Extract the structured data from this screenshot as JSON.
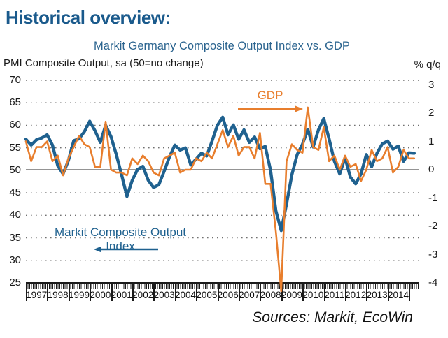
{
  "page": {
    "heading": "Historical overview:",
    "sources": "Sources: Markit, EcoWin"
  },
  "colors": {
    "heading": "#1A5A8C",
    "chart_title": "#2B648F",
    "pmi_line": "#1F618F",
    "gdp_line": "#E87E2D",
    "grid_dotted": "#707070",
    "zero_line": "#555555",
    "axis": "#1a1a1a"
  },
  "chart_data": {
    "type": "line",
    "title": "Markit Germany Composite Output Index vs. GDP",
    "left_axis": {
      "caption": "PMI Composite Output, sa (50=no change)",
      "ticks": [
        70,
        65,
        60,
        55,
        50,
        45,
        40,
        35,
        30,
        25
      ],
      "range": [
        25,
        70
      ],
      "reference_line": 50
    },
    "right_axis": {
      "caption": "% q/q",
      "ticks": [
        3,
        2,
        1,
        0,
        -1,
        -2,
        -3,
        -4
      ],
      "range": [
        -4,
        3
      ]
    },
    "x_years": [
      "1997",
      "1998",
      "1999",
      "2000",
      "2001",
      "2002",
      "2003",
      "2004",
      "2005",
      "2006",
      "2007",
      "2008",
      "2009",
      "2010",
      "2011",
      "2012",
      "2013",
      "2014"
    ],
    "annotations": {
      "gdp_label": "GDP",
      "pmi_label": "Markit Composite Output Index"
    },
    "series": [
      {
        "name": "Markit Composite Output Index",
        "axis": "left",
        "start_year": 1997,
        "points_per_year": 4,
        "values": [
          56.9,
          55.6,
          56.8,
          57.2,
          57.9,
          55.6,
          51.0,
          49.2,
          52.2,
          56.6,
          57.0,
          58.6,
          60.9,
          58.8,
          56.2,
          60.0,
          57.5,
          53.5,
          49.0,
          44.2,
          47.8,
          50.2,
          50.9,
          47.8,
          46.2,
          46.8,
          49.8,
          53.0,
          55.6,
          54.5,
          55.0,
          51.2,
          52.5,
          53.8,
          53.2,
          56.5,
          60.0,
          61.8,
          57.9,
          60.1,
          56.9,
          59.0,
          56.2,
          57.4,
          54.8,
          55.3,
          50.0,
          41.0,
          36.6,
          42.5,
          49.0,
          53.5,
          55.8,
          59.1,
          55.2,
          59.0,
          61.5,
          57.0,
          52.0,
          49.2,
          52.8,
          48.5,
          47.0,
          49.2,
          53.5,
          50.8,
          53.8,
          55.9,
          56.5,
          54.7,
          55.4,
          52.0,
          53.9,
          53.8
        ]
      },
      {
        "name": "GDP",
        "axis": "right",
        "start_year": 1997,
        "points_per_year": 4,
        "values": [
          1.0,
          0.3,
          0.8,
          0.8,
          1.0,
          0.3,
          0.5,
          -0.2,
          0.4,
          0.8,
          1.2,
          0.9,
          0.8,
          0.1,
          0.1,
          1.7,
          0.0,
          -0.1,
          -0.1,
          -0.2,
          0.4,
          0.2,
          0.5,
          0.3,
          -0.1,
          -0.2,
          0.4,
          0.5,
          0.6,
          -0.1,
          0.0,
          0.0,
          0.4,
          0.3,
          0.6,
          0.4,
          0.9,
          1.4,
          0.8,
          1.2,
          0.5,
          0.8,
          0.8,
          0.4,
          1.3,
          -0.5,
          -0.5,
          -2.2,
          -4.3,
          0.3,
          0.9,
          0.7,
          0.6,
          2.2,
          0.8,
          0.7,
          1.5,
          0.3,
          0.5,
          0.0,
          0.5,
          0.1,
          0.2,
          -0.4,
          0.0,
          0.7,
          0.3,
          0.4,
          0.8,
          -0.1,
          0.1,
          0.7,
          0.4,
          0.4
        ]
      }
    ]
  }
}
